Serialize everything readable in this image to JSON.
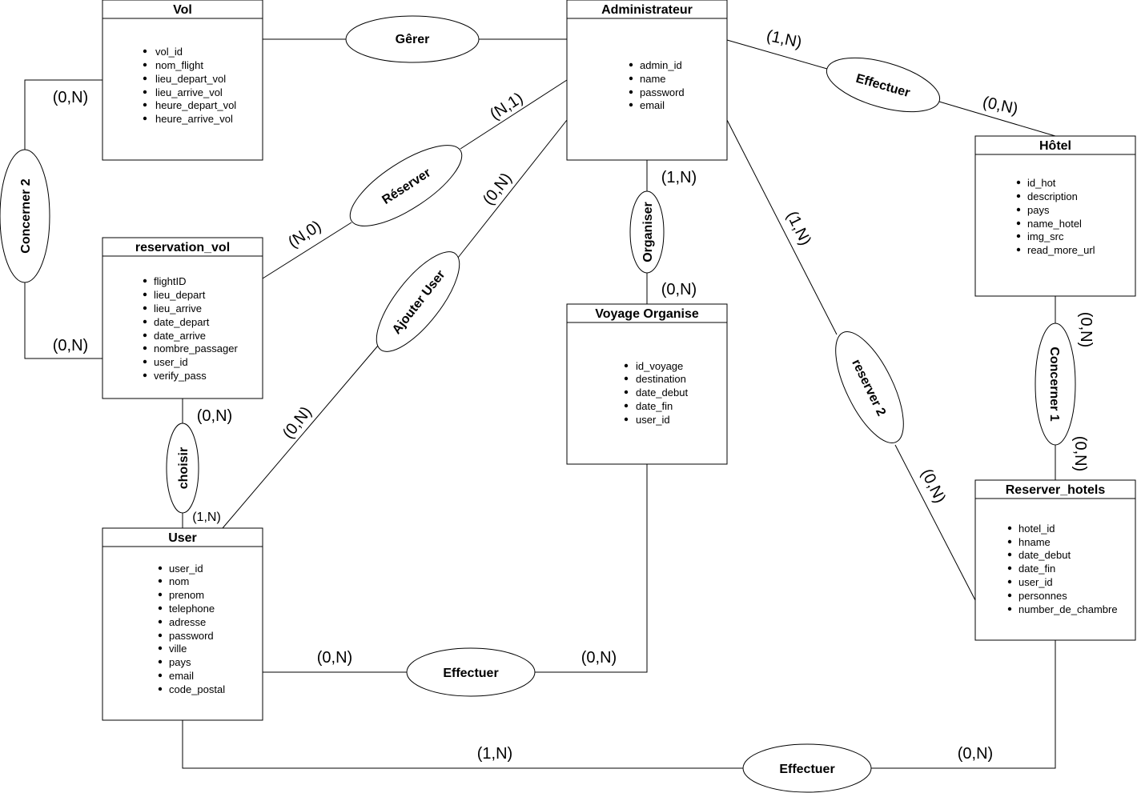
{
  "entities": {
    "vol": {
      "title": "Vol",
      "attributes": [
        "vol_id",
        "nom_flight",
        "lieu_depart_vol",
        "lieu_arrive_vol",
        "heure_depart_vol",
        "heure_arrive_vol"
      ]
    },
    "administrateur": {
      "title": "Administrateur",
      "attributes": [
        "admin_id",
        "name",
        "password",
        "email"
      ]
    },
    "hotel": {
      "title": "Hôtel",
      "attributes": [
        "id_hot",
        "description",
        "pays",
        "name_hotel",
        "img_src",
        "read_more_url"
      ]
    },
    "reservation_vol": {
      "title": "reservation_vol",
      "attributes": [
        "flightID",
        "lieu_depart",
        "lieu_arrive",
        "date_depart",
        "date_arrive",
        "nombre_passager",
        "user_id",
        "verify_pass"
      ]
    },
    "voyage_organise": {
      "title": "Voyage Organise",
      "attributes": [
        "id_voyage",
        "destination",
        "date_debut",
        "date_fin",
        "user_id"
      ]
    },
    "user": {
      "title": "User",
      "attributes": [
        "user_id",
        "nom",
        "prenom",
        "telephone",
        "adresse",
        "password",
        "ville",
        "pays",
        "email",
        "code_postal"
      ]
    },
    "reserver_hotels": {
      "title": "Reserver_hotels",
      "attributes": [
        "hotel_id",
        "hname",
        "date_debut",
        "date_fin",
        "user_id",
        "personnes",
        "number_de_chambre"
      ]
    }
  },
  "relationships": {
    "gerer": "Gêrer",
    "effectuer_admin_hotel": "Effectuer",
    "reserver": "Réserver",
    "ajouter_user": "Ajouter User",
    "organiser": "Organiser",
    "reserver_2": "reserver 2",
    "concerner_1": "Concerner 1",
    "concerner_2": "Concerner 2",
    "choisir": "choisir",
    "effectuer_user_voyage": "Effectuer",
    "effectuer_user_hotels": "Effectuer"
  },
  "cardinalities": {
    "concerner2_vol": "(0,N)",
    "concerner2_resa": "(0,N)",
    "admin_effectuer": "(1,N)",
    "hotel_effectuer": "(0,N)",
    "admin_reserver": "(N,1)",
    "resa_reserver": "(N,0)",
    "admin_ajouter": "(0,N)",
    "user_ajouter": "(0,N)",
    "admin_organiser": "(1,N)",
    "voyage_organiser": "(0,N)",
    "admin_reserver2": "(1,N)",
    "hotels_reserver2": "(0,N)",
    "hotel_concerner1": "(0,N)",
    "hotels_concerner1": "(0,N)",
    "resa_choisir": "(0,N)",
    "user_choisir": "(1,N)",
    "user_eff_voyage": "(0,N)",
    "voyage_eff_user": "(0,N)",
    "user_eff_hotels": "(1,N)",
    "hotels_eff_user": "(0,N)"
  }
}
